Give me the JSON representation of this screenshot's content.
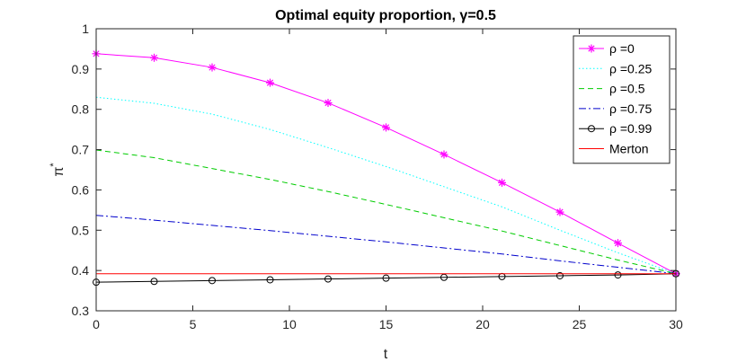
{
  "chart_data": {
    "type": "line",
    "title": "Optimal equity proportion, γ=0.5",
    "xlabel": "t",
    "ylabel": "π*",
    "xlim": [
      0,
      30
    ],
    "ylim": [
      0.3,
      1.0
    ],
    "x_ticks": [
      "0",
      "5",
      "10",
      "15",
      "20",
      "25",
      "30"
    ],
    "y_ticks": [
      "0.3",
      "0.4",
      "0.5",
      "0.6",
      "0.7",
      "0.8",
      "0.9",
      "1"
    ],
    "grid": false,
    "legend_position": "top-right",
    "x": [
      0,
      3,
      6,
      9,
      12,
      15,
      18,
      21,
      24,
      27,
      30
    ],
    "series": [
      {
        "name": "ρ =0",
        "color": "#ff00ff",
        "style": "solid",
        "marker": "asterisk",
        "values": [
          0.938,
          0.928,
          0.904,
          0.866,
          0.816,
          0.755,
          0.688,
          0.618,
          0.545,
          0.468,
          0.392
        ]
      },
      {
        "name": "ρ =0.25",
        "color": "#00ffff",
        "style": "dotted",
        "marker": "none",
        "values": [
          0.83,
          0.815,
          0.788,
          0.75,
          0.705,
          0.658,
          0.608,
          0.558,
          0.5,
          0.444,
          0.392
        ]
      },
      {
        "name": "ρ =0.5",
        "color": "#00cc00",
        "style": "dashed",
        "marker": "none",
        "values": [
          0.699,
          0.68,
          0.653,
          0.626,
          0.596,
          0.564,
          0.531,
          0.498,
          0.462,
          0.426,
          0.392
        ]
      },
      {
        "name": "ρ =0.75",
        "color": "#0000cc",
        "style": "dashdot",
        "marker": "none",
        "values": [
          0.537,
          0.525,
          0.512,
          0.499,
          0.485,
          0.471,
          0.456,
          0.441,
          0.424,
          0.408,
          0.392
        ]
      },
      {
        "name": "ρ =0.99",
        "color": "#000000",
        "style": "solid",
        "marker": "circle",
        "values": [
          0.371,
          0.373,
          0.375,
          0.377,
          0.379,
          0.381,
          0.383,
          0.385,
          0.387,
          0.389,
          0.392
        ]
      },
      {
        "name": "Merton",
        "color": "#ff0000",
        "style": "solid",
        "marker": "none",
        "values": [
          0.392,
          0.392,
          0.392,
          0.392,
          0.392,
          0.392,
          0.392,
          0.392,
          0.392,
          0.392,
          0.392
        ]
      }
    ]
  }
}
